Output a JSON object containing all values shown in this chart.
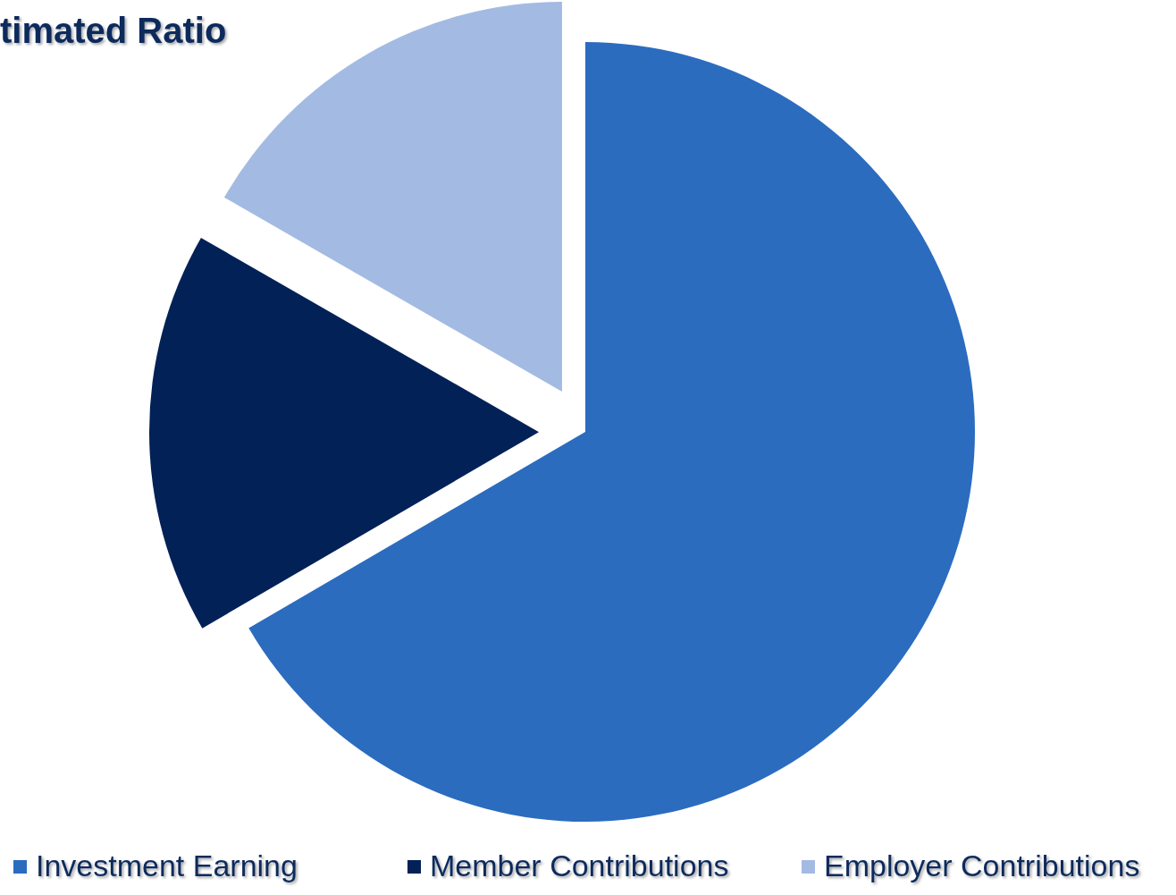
{
  "chart_data": {
    "type": "pie",
    "title": "timated Ratio",
    "categories": [
      "Investment Earning",
      "Member Contributions",
      "Employer Contributions"
    ],
    "values": [
      66.6,
      16.7,
      16.7
    ],
    "colors": [
      "#2b6cbf",
      "#022157",
      "#a3bbe3"
    ],
    "legend": "bottom"
  }
}
